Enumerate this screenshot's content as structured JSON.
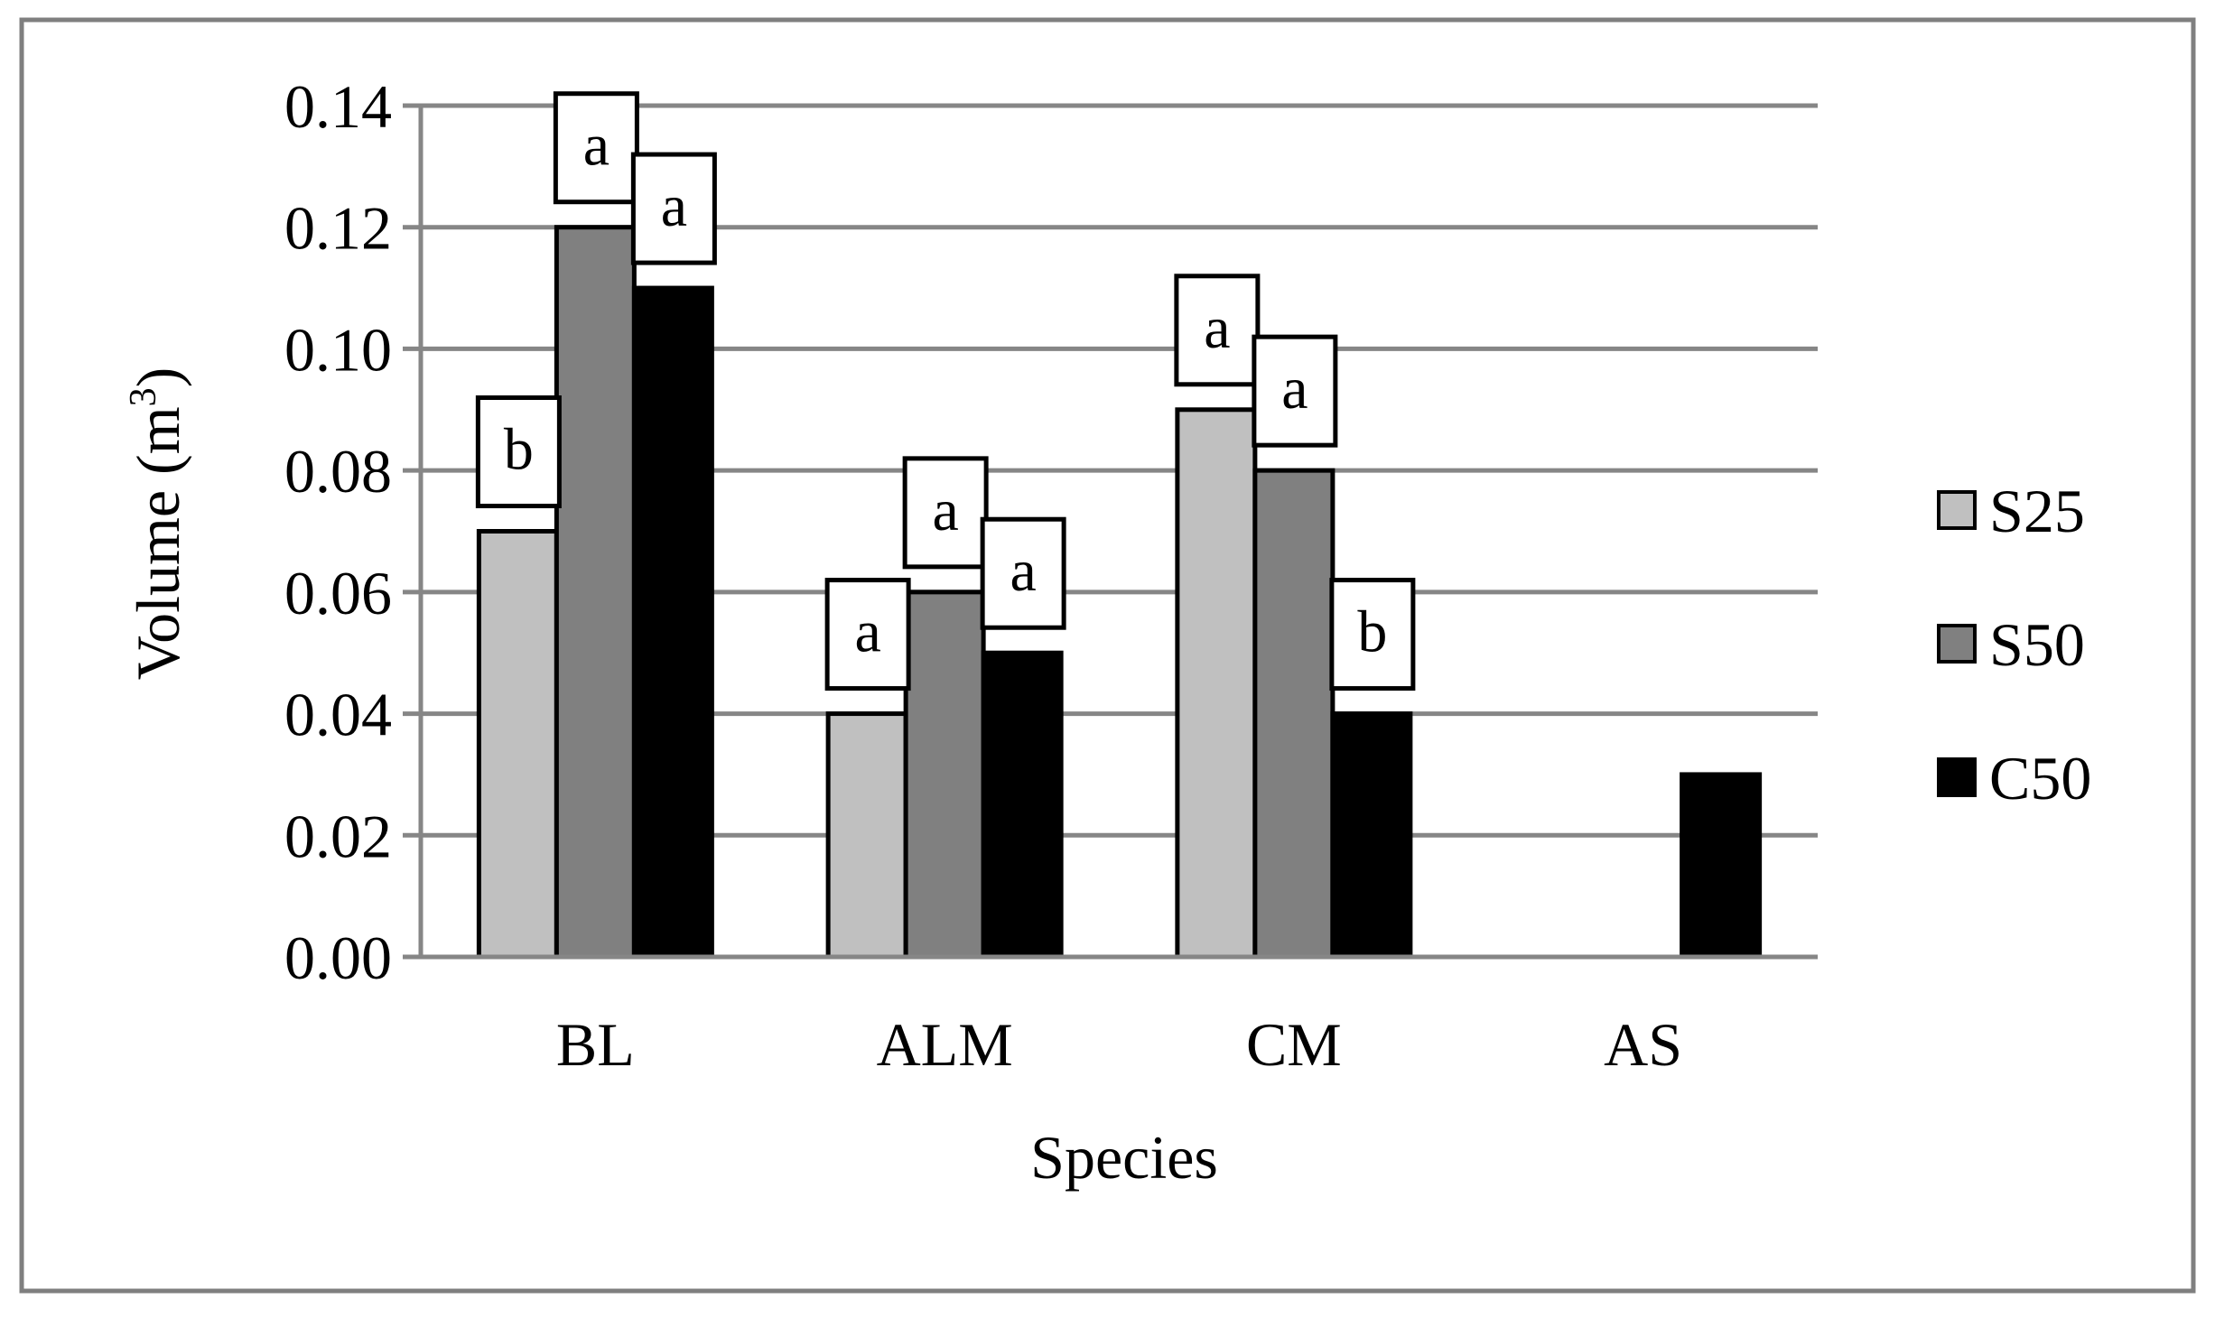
{
  "chart_data": {
    "type": "bar",
    "title": "",
    "xlabel": "Species",
    "ylabel": "Volume (m",
    "ylabel_superscript": "3",
    "ylabel_close": ")",
    "ylim": [
      0,
      0.14
    ],
    "yticks": [
      "0.00",
      "0.02",
      "0.04",
      "0.06",
      "0.08",
      "0.10",
      "0.12",
      "0.14"
    ],
    "grid": true,
    "legend_position": "right",
    "categories": [
      "BL",
      "ALM",
      "CM",
      "AS"
    ],
    "series": [
      {
        "name": "S25",
        "color": "#c0c0c0",
        "values": [
          0.07,
          0.04,
          0.09,
          0
        ]
      },
      {
        "name": "S50",
        "color": "#808080",
        "values": [
          0.12,
          0.06,
          0.08,
          0
        ]
      },
      {
        "name": "C50",
        "color": "#000000",
        "values": [
          0.11,
          0.05,
          0.04,
          0.03
        ]
      }
    ],
    "significance_labels": [
      [
        "b",
        "a",
        "a",
        ""
      ],
      [
        "a",
        "a",
        "a",
        ""
      ],
      [
        "a",
        "a",
        "b",
        ""
      ]
    ]
  }
}
